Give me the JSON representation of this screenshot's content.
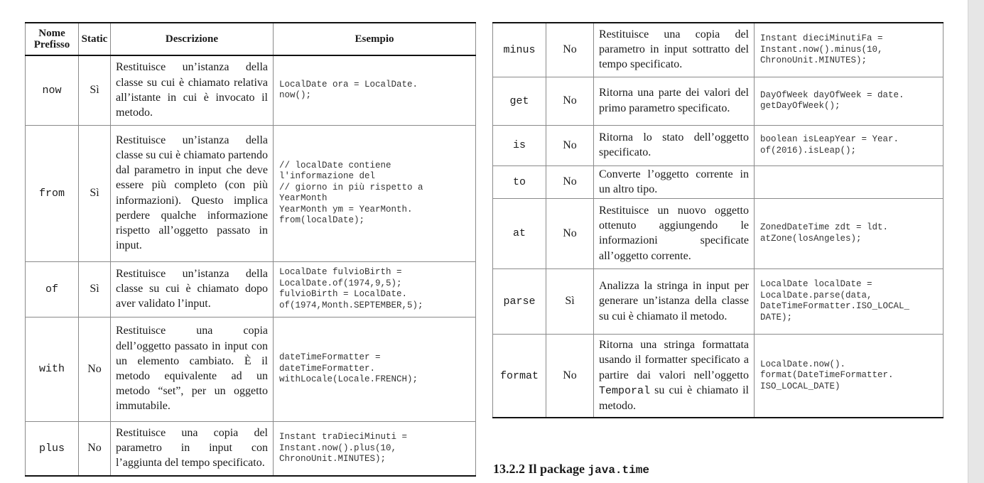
{
  "headers": {
    "name": "Nome Prefisso",
    "static": "Static",
    "desc": "Descrizione",
    "example": "Esempio"
  },
  "left_rows": [
    {
      "name": "now",
      "static": "Sì",
      "desc": "Restituisce un’istanza della classe su cui è chiamato relativa all’istante in cui è invocato il metodo.",
      "example": "LocalDate ora = LocalDate.\nnow();"
    },
    {
      "name": "from",
      "static": "Sì",
      "desc": "Restituisce un’istanza della classe su cui è chiamato partendo dal parametro in input che deve essere più completo (con più informazioni). Questo implica perdere qualche informazione rispetto all’oggetto passato in input.",
      "example": "// localDate contiene\nl'informazione del\n// giorno in più rispetto a\nYearMonth\nYearMonth ym = YearMonth.\nfrom(localDate);"
    },
    {
      "name": "of",
      "static": "Sì",
      "desc": "Restituisce un’istanza della classe su cui è chiamato dopo aver validato l’input.",
      "example": "LocalDate fulvioBirth =\nLocalDate.of(1974,9,5);\nfulvioBirth = LocalDate.\nof(1974,Month.SEPTEMBER,5);"
    },
    {
      "name": "with",
      "static": "No",
      "desc": "Restituisce una copia dell’oggetto passato in input con un elemento cambiato. È il metodo equivalente ad un metodo “set”, per un oggetto immutabile.",
      "example": "dateTimeFormatter =\ndateTimeFormatter.\nwithLocale(Locale.FRENCH);"
    },
    {
      "name": "plus",
      "static": "No",
      "desc": "Restituisce una copia del parametro in input con l’aggiunta del tempo specificato.",
      "example": "Instant traDieciMinuti =\nInstant.now().plus(10,\nChronoUnit.MINUTES);"
    }
  ],
  "right_rows": [
    {
      "name": "minus",
      "static": "No",
      "desc": "Restituisce una copia del parametro in input sottratto del tempo specificato.",
      "example": "Instant dieciMinutiFa =\nInstant.now().minus(10,\nChronoUnit.MINUTES);"
    },
    {
      "name": "get",
      "static": "No",
      "desc": "Ritorna una parte dei valori del primo parametro specificato.",
      "example": "DayOfWeek dayOfWeek = date.\ngetDayOfWeek();"
    },
    {
      "name": "is",
      "static": "No",
      "desc": "Ritorna lo stato dell’oggetto specificato.",
      "example": "boolean isLeapYear = Year.\nof(2016).isLeap();"
    },
    {
      "name": "to",
      "static": "No",
      "desc": "Converte l’oggetto corrente in un altro tipo.",
      "example": ""
    },
    {
      "name": "at",
      "static": "No",
      "desc": "Restituisce un nuovo oggetto ottenuto aggiungendo le informazioni specificate all’oggetto corrente.",
      "example": "ZonedDateTime zdt = ldt.\natZone(losAngeles);"
    },
    {
      "name": "parse",
      "static": "Sì",
      "desc": "Analizza la stringa in input per generare un’istanza della classe su cui è chiamato il metodo.",
      "example": "LocalDate localDate =\nLocalDate.parse(data,\nDateTimeFormatter.ISO_LOCAL_\nDATE);"
    },
    {
      "name": "format",
      "static": "No",
      "desc_before": "Ritorna una stringa formattata usando il formatter specificato a partire dai valori nell’oggetto ",
      "desc_code": "Temporal",
      "desc_after": " su cui è chiamato il metodo.",
      "example": "LocalDate.now().\nformat(DateTimeFormatter.\nISO_LOCAL_DATE)"
    }
  ],
  "section": {
    "number": "13.2.2",
    "title": "Il package",
    "code": "java.time"
  }
}
